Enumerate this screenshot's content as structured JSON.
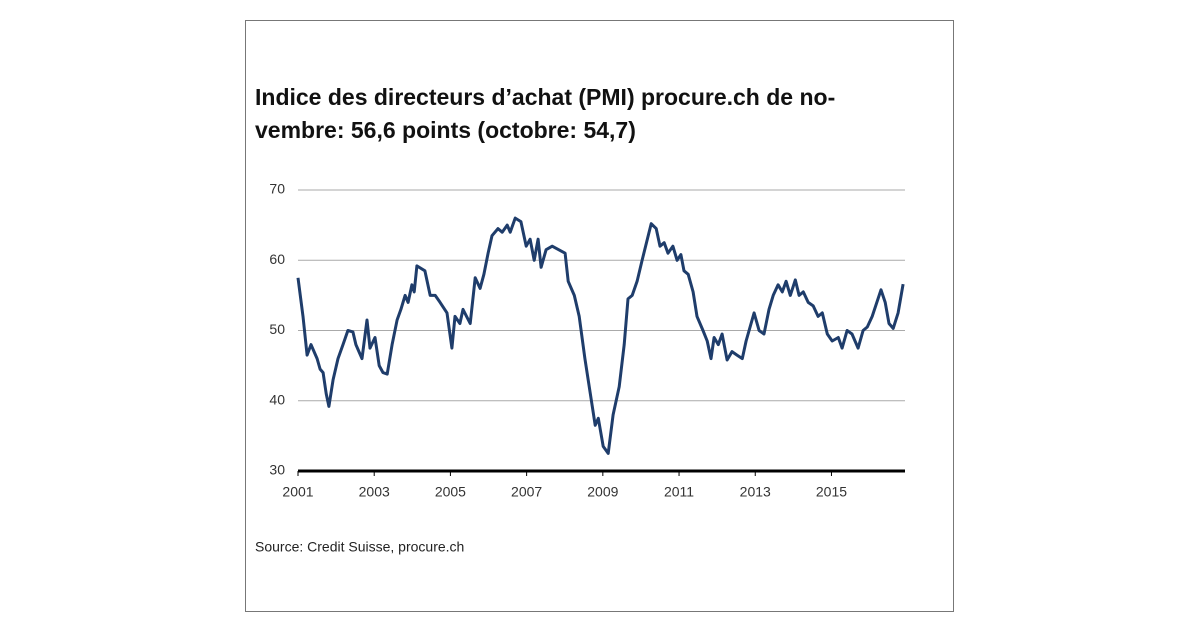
{
  "chart_data": {
    "type": "line",
    "title": [
      "Indice des directeurs d’achat (PMI) procure.ch de no-",
      "vembre: 56,6 points (octobre: 54,7)"
    ],
    "source": "Source: Credit Suisse, procure.ch",
    "x": [
      2001.0,
      2001.13,
      2001.24,
      2001.34,
      2001.5,
      2001.58,
      2001.66,
      2001.74,
      2001.81,
      2001.92,
      2002.05,
      2002.18,
      2002.31,
      2002.44,
      2002.52,
      2002.68,
      2002.81,
      2002.89,
      2003.02,
      2003.13,
      2003.23,
      2003.34,
      2003.47,
      2003.6,
      2003.7,
      2003.81,
      2003.89,
      2003.99,
      2004.05,
      2004.12,
      2004.33,
      2004.47,
      2004.6,
      2004.73,
      2004.91,
      2005.04,
      2005.12,
      2005.25,
      2005.33,
      2005.52,
      2005.65,
      2005.78,
      2005.88,
      2005.99,
      2006.09,
      2006.25,
      2006.36,
      2006.49,
      2006.57,
      2006.7,
      2006.85,
      2006.99,
      2007.09,
      2007.2,
      2007.3,
      2007.38,
      2007.51,
      2007.67,
      2008.01,
      2008.09,
      2008.25,
      2008.38,
      2008.53,
      2008.8,
      2008.88,
      2009.01,
      2009.14,
      2009.27,
      2009.43,
      2009.56,
      2009.66,
      2009.77,
      2009.9,
      2010.03,
      2010.27,
      2010.4,
      2010.5,
      2010.61,
      2010.71,
      2010.84,
      2010.95,
      2011.05,
      2011.13,
      2011.24,
      2011.37,
      2011.47,
      2011.63,
      2011.74,
      2011.84,
      2011.92,
      2012.03,
      2012.13,
      2012.26,
      2012.39,
      2012.52,
      2012.66,
      2012.76,
      2012.97,
      2013.1,
      2013.23,
      2013.36,
      2013.47,
      2013.6,
      2013.71,
      2013.81,
      2013.92,
      2014.05,
      2014.15,
      2014.26,
      2014.39,
      2014.52,
      2014.65,
      2014.76,
      2014.89,
      2015.02,
      2015.18,
      2015.28,
      2015.41,
      2015.54,
      2015.7,
      2015.83,
      2015.94,
      2016.07,
      2016.3,
      2016.41,
      2016.51,
      2016.62,
      2016.75,
      2016.88
    ],
    "series": [
      {
        "name": "PMI",
        "color": "#1f3d6b",
        "values": [
          57.5,
          52,
          46.5,
          48,
          46,
          44.5,
          44,
          41,
          39.2,
          43,
          46,
          48,
          50,
          49.8,
          48,
          46,
          51.5,
          47.5,
          49,
          45,
          44,
          43.8,
          48,
          51.5,
          53,
          55,
          54,
          56.5,
          55.5,
          59.2,
          58.5,
          55,
          55,
          54,
          52.5,
          47.5,
          52,
          51,
          53,
          51,
          57.5,
          56,
          58,
          61,
          63.5,
          64.5,
          64,
          65,
          64,
          66,
          65.5,
          62,
          63,
          60,
          63,
          59,
          61.5,
          62,
          61,
          57,
          55,
          52,
          46,
          36.5,
          37.5,
          33.5,
          32.5,
          38,
          42,
          48,
          54.5,
          55,
          57,
          60,
          65.2,
          64.5,
          62,
          62.5,
          61,
          62,
          60,
          60.8,
          58.5,
          58,
          55.5,
          52,
          50,
          48.5,
          46,
          49,
          48,
          49.5,
          45.8,
          47,
          46.5,
          46,
          48.5,
          52.5,
          50,
          49.5,
          53,
          55,
          56.5,
          55.5,
          57,
          55,
          57.2,
          55,
          55.5,
          54,
          53.5,
          52,
          52.5,
          49.5,
          48.5,
          49,
          47.5,
          50,
          49.5,
          47.5,
          50,
          50.5,
          52,
          55.8,
          54,
          51,
          50.3,
          52.5,
          56.6
        ]
      }
    ],
    "xlim": [
      2001,
      2016.93
    ],
    "xticks": [
      2001,
      2003,
      2005,
      2007,
      2009,
      2011,
      2013,
      2015
    ],
    "ylim": [
      30,
      70
    ],
    "yticks": [
      30,
      40,
      50,
      60,
      70
    ],
    "grid": true
  }
}
